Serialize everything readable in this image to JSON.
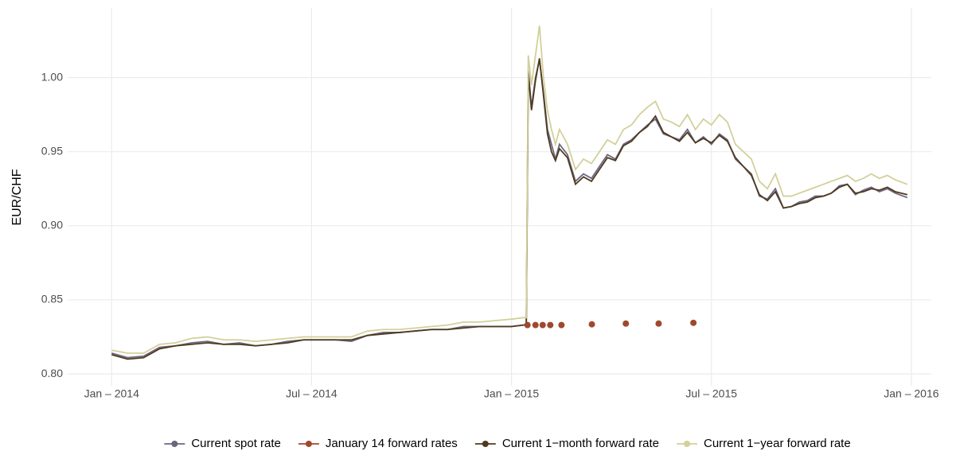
{
  "chart_data": {
    "type": "line",
    "y_axis_label": "EUR/CHF",
    "x": [
      2014.0,
      2014.04,
      2014.08,
      2014.12,
      2014.16,
      2014.2,
      2014.24,
      2014.28,
      2014.32,
      2014.36,
      2014.4,
      2014.44,
      2014.48,
      2014.52,
      2014.56,
      2014.6,
      2014.64,
      2014.68,
      2014.72,
      2014.76,
      2014.8,
      2014.84,
      2014.88,
      2014.92,
      2014.96,
      2015.0,
      2015.03,
      2015.037,
      2015.042,
      2015.05,
      2015.06,
      2015.07,
      2015.08,
      2015.09,
      2015.1,
      2015.11,
      2015.12,
      2015.14,
      2015.16,
      2015.18,
      2015.2,
      2015.22,
      2015.24,
      2015.26,
      2015.28,
      2015.3,
      2015.32,
      2015.34,
      2015.36,
      2015.38,
      2015.4,
      2015.42,
      2015.44,
      2015.46,
      2015.48,
      2015.5,
      2015.52,
      2015.54,
      2015.56,
      2015.58,
      2015.6,
      2015.62,
      2015.64,
      2015.66,
      2015.68,
      2015.7,
      2015.72,
      2015.74,
      2015.76,
      2015.78,
      2015.8,
      2015.82,
      2015.84,
      2015.86,
      2015.88,
      2015.9,
      2015.92,
      2015.94,
      2015.96,
      2015.99
    ],
    "series": [
      {
        "name": "Current spot rate",
        "color": "#6e6480",
        "values": [
          0.814,
          0.811,
          0.812,
          0.818,
          0.819,
          0.821,
          0.822,
          0.82,
          0.821,
          0.819,
          0.82,
          0.822,
          0.823,
          0.823,
          0.823,
          0.822,
          0.826,
          0.828,
          0.828,
          0.829,
          0.83,
          0.83,
          0.832,
          0.832,
          0.832,
          0.832,
          0.833,
          0.833,
          1.005,
          0.98,
          1.0,
          1.012,
          0.99,
          0.965,
          0.955,
          0.945,
          0.955,
          0.948,
          0.93,
          0.935,
          0.932,
          0.94,
          0.948,
          0.945,
          0.955,
          0.958,
          0.963,
          0.968,
          0.972,
          0.962,
          0.96,
          0.958,
          0.965,
          0.956,
          0.96,
          0.955,
          0.962,
          0.958,
          0.945,
          0.94,
          0.935,
          0.92,
          0.918,
          0.925,
          0.912,
          0.913,
          0.916,
          0.917,
          0.92,
          0.92,
          0.922,
          0.927,
          0.928,
          0.921,
          0.924,
          0.926,
          0.923,
          0.925,
          0.922,
          0.919
        ]
      },
      {
        "name": "January 14 forward rates",
        "color": "#a0482e",
        "type": "scatter",
        "x": [
          2015.04,
          2015.06,
          2015.078,
          2015.097,
          2015.125,
          2015.201,
          2015.286,
          2015.368,
          2015.455
        ],
        "values": [
          0.833,
          0.833,
          0.833,
          0.833,
          0.833,
          0.8335,
          0.834,
          0.834,
          0.8345
        ]
      },
      {
        "name": "Current 1−month forward rate",
        "color": "#4e3b1f",
        "values": [
          0.813,
          0.81,
          0.811,
          0.817,
          0.819,
          0.82,
          0.821,
          0.82,
          0.82,
          0.819,
          0.82,
          0.821,
          0.823,
          0.823,
          0.823,
          0.823,
          0.826,
          0.827,
          0.828,
          0.829,
          0.83,
          0.83,
          0.831,
          0.832,
          0.832,
          0.832,
          0.833,
          0.833,
          1.003,
          0.978,
          0.998,
          1.013,
          0.988,
          0.962,
          0.95,
          0.944,
          0.952,
          0.946,
          0.928,
          0.933,
          0.93,
          0.938,
          0.946,
          0.944,
          0.954,
          0.957,
          0.963,
          0.967,
          0.974,
          0.963,
          0.96,
          0.957,
          0.963,
          0.956,
          0.959,
          0.956,
          0.961,
          0.957,
          0.946,
          0.94,
          0.934,
          0.921,
          0.917,
          0.923,
          0.912,
          0.913,
          0.915,
          0.916,
          0.919,
          0.92,
          0.922,
          0.926,
          0.928,
          0.922,
          0.923,
          0.925,
          0.924,
          0.926,
          0.923,
          0.921
        ]
      },
      {
        "name": "Current 1−year forward rate",
        "color": "#d3d09a",
        "values": [
          0.816,
          0.814,
          0.814,
          0.82,
          0.821,
          0.824,
          0.825,
          0.823,
          0.823,
          0.822,
          0.823,
          0.824,
          0.825,
          0.825,
          0.825,
          0.825,
          0.829,
          0.83,
          0.83,
          0.831,
          0.832,
          0.833,
          0.835,
          0.835,
          0.836,
          0.837,
          0.838,
          0.838,
          1.015,
          0.995,
          1.015,
          1.035,
          1.0,
          0.978,
          0.965,
          0.955,
          0.965,
          0.955,
          0.938,
          0.945,
          0.942,
          0.95,
          0.958,
          0.955,
          0.965,
          0.968,
          0.975,
          0.98,
          0.984,
          0.972,
          0.97,
          0.967,
          0.975,
          0.965,
          0.972,
          0.968,
          0.975,
          0.97,
          0.955,
          0.95,
          0.945,
          0.93,
          0.925,
          0.935,
          0.92,
          0.92,
          0.922,
          0.924,
          0.926,
          0.928,
          0.93,
          0.932,
          0.934,
          0.93,
          0.932,
          0.935,
          0.932,
          0.934,
          0.931,
          0.928
        ]
      }
    ],
    "xlim": [
      2013.89,
      2016.05
    ],
    "xticks": [
      {
        "value": 2014.0,
        "label": "Jan – 2014"
      },
      {
        "value": 2014.5,
        "label": "Jul – 2014"
      },
      {
        "value": 2015.0,
        "label": "Jan – 2015"
      },
      {
        "value": 2015.5,
        "label": "Jul – 2015"
      },
      {
        "value": 2016.0,
        "label": "Jan – 2016"
      }
    ],
    "ylim": [
      0.792,
      1.047
    ],
    "yticks": [
      {
        "value": 0.8,
        "label": "0.80"
      },
      {
        "value": 0.85,
        "label": "0.85"
      },
      {
        "value": 0.9,
        "label": "0.90"
      },
      {
        "value": 0.95,
        "label": "0.95"
      },
      {
        "value": 1.0,
        "label": "1.00"
      }
    ],
    "grid": true,
    "legend_position": "bottom"
  }
}
